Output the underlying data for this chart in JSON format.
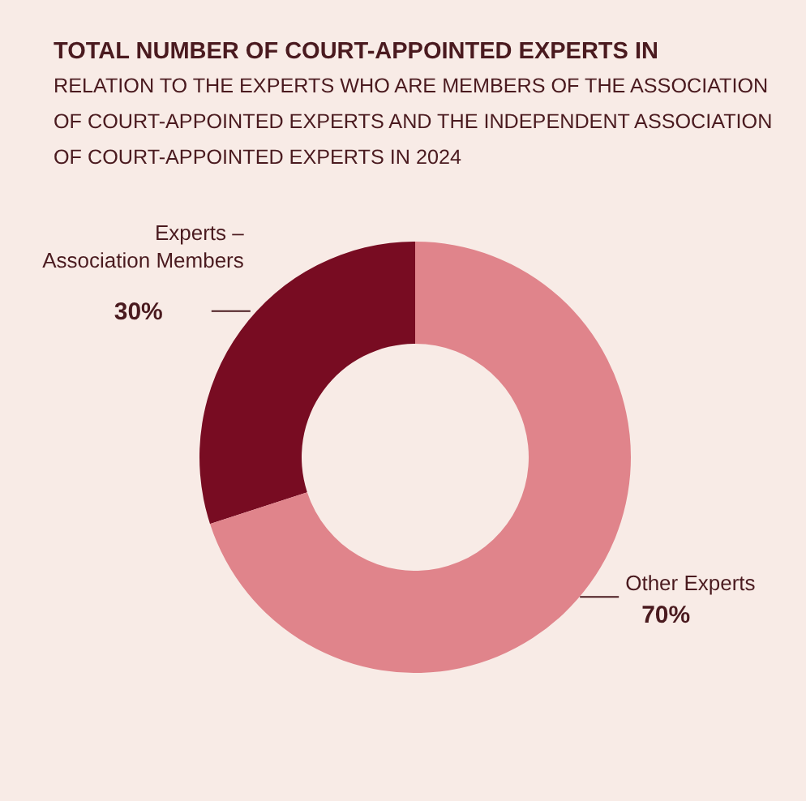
{
  "chart_data": {
    "type": "donut",
    "title": "TOTAL NUMBER OF COURT-APPOINTED EXPERTS IN",
    "subtitle": "RELATION TO THE EXPERTS WHO ARE MEMBERS OF THE ASSOCIATION OF COURT-APPOINTED EXPERTS AND THE INDEPENDENT ASSOCIATION OF COURT-APPOINTED EXPERTS IN 2024",
    "categories": [
      "Experts – Association Members",
      "Other Experts"
    ],
    "values": [
      30,
      70
    ],
    "colors": [
      "#780c22",
      "#e0848b"
    ],
    "value_labels": [
      "30%",
      "70%"
    ]
  }
}
